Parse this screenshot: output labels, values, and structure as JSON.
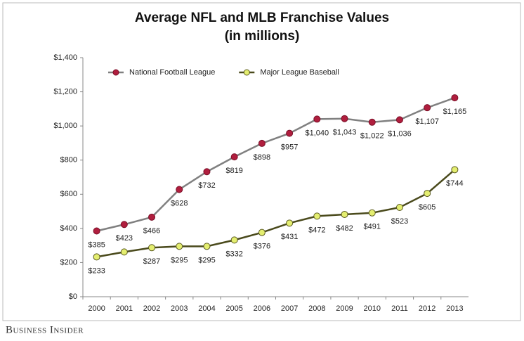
{
  "chart_data": {
    "type": "line",
    "title": "Average NFL and MLB Franchise Values",
    "subtitle": "(in millions)",
    "source": "Business Insider",
    "categories": [
      "2000",
      "2001",
      "2002",
      "2003",
      "2004",
      "2005",
      "2006",
      "2007",
      "2008",
      "2009",
      "2010",
      "2011",
      "2012",
      "2013"
    ],
    "series": [
      {
        "name": "National Football League",
        "color": "#b01e3e",
        "line_color": "#808080",
        "values": [
          385,
          423,
          466,
          628,
          732,
          819,
          898,
          957,
          1040,
          1043,
          1022,
          1036,
          1107,
          1165
        ],
        "value_labels": [
          "$385",
          "$423",
          "$466",
          "$628",
          "$732",
          "$819",
          "$898",
          "$957",
          "$1,040",
          "$1,043",
          "$1,022",
          "$1,036",
          "$1,107",
          "$1,165"
        ]
      },
      {
        "name": "Major League Baseball",
        "color": "#e4ee70",
        "line_color": "#4a4a1c",
        "values": [
          233,
          262,
          287,
          295,
          295,
          332,
          376,
          431,
          472,
          482,
          491,
          523,
          605,
          744
        ],
        "value_labels": [
          "$233",
          null,
          "$287",
          "$295",
          "$295",
          "$332",
          "$376",
          "$431",
          "$472",
          "$482",
          "$491",
          "$523",
          "$605",
          "$744"
        ]
      }
    ],
    "ylim": [
      0,
      1400
    ],
    "yticks": [
      {
        "value": 0,
        "label": "$0"
      },
      {
        "value": 200,
        "label": "$200"
      },
      {
        "value": 400,
        "label": "$400"
      },
      {
        "value": 600,
        "label": "$600"
      },
      {
        "value": 800,
        "label": "$800"
      },
      {
        "value": 1000,
        "label": "$1,000"
      },
      {
        "value": 1200,
        "label": "$1,200"
      },
      {
        "value": 1400,
        "label": "$1,400"
      }
    ],
    "grid": false,
    "legend": "top-left"
  }
}
